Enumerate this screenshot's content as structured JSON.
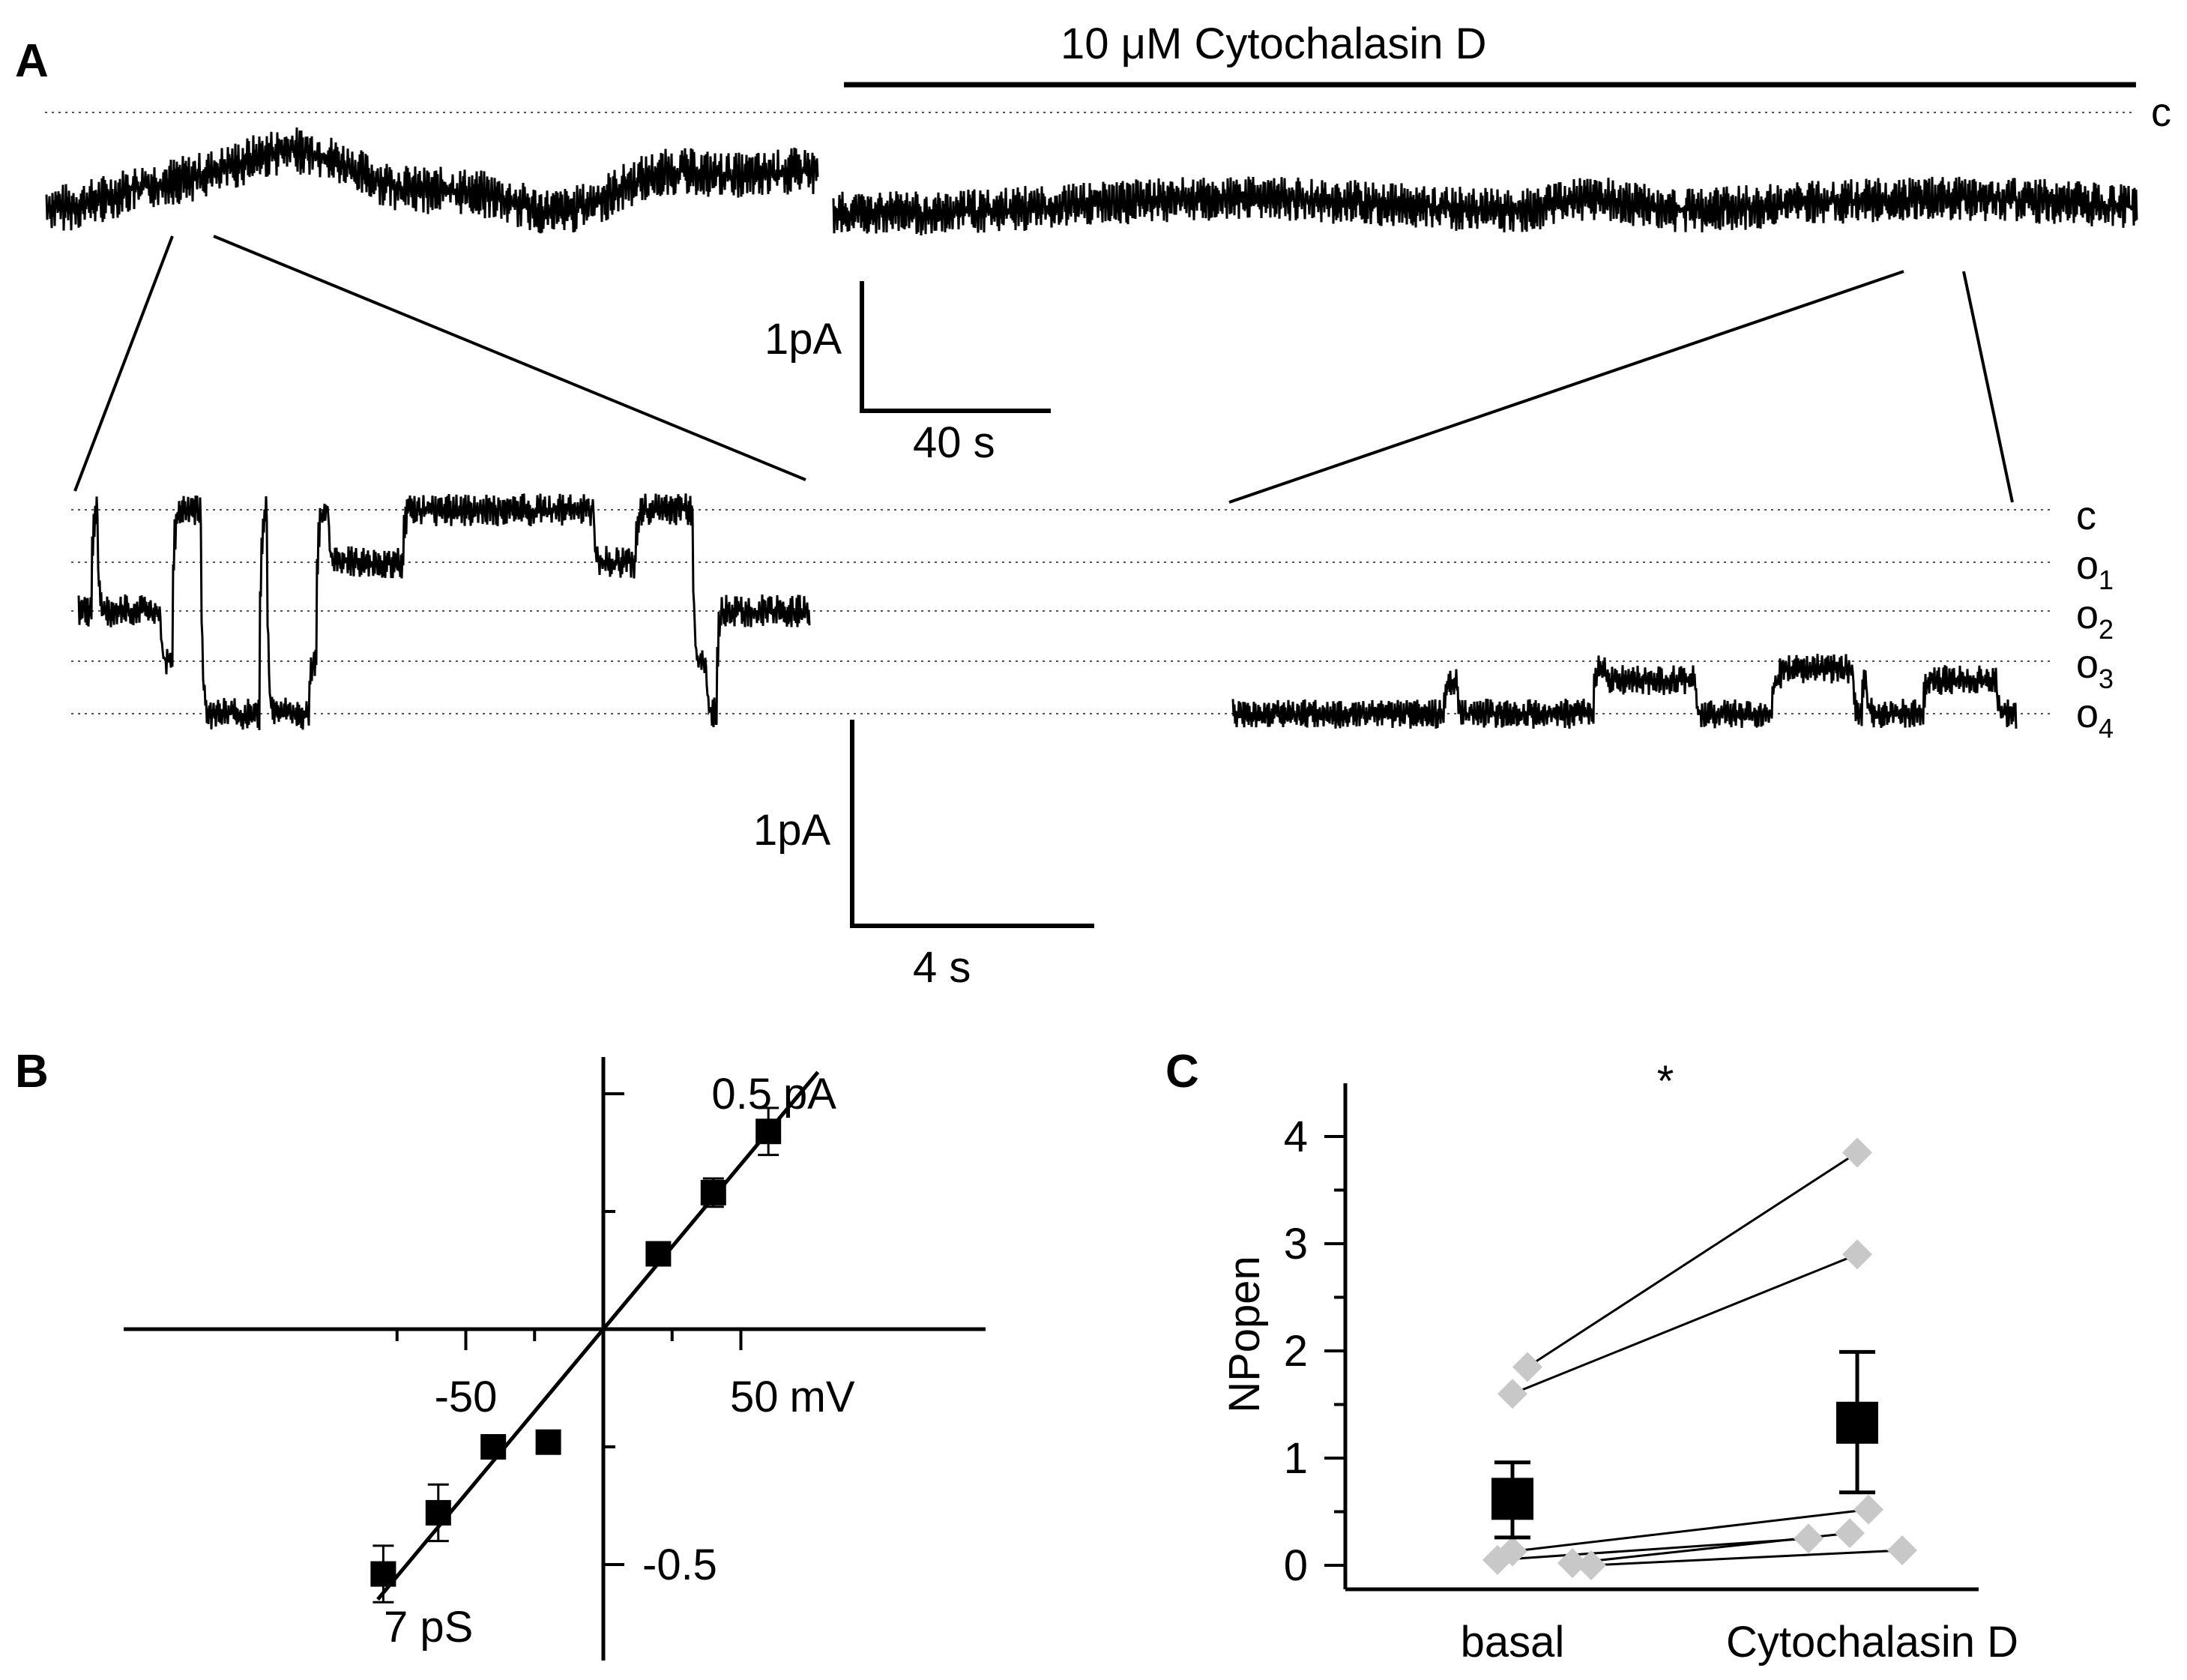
{
  "panels": {
    "A": {
      "label": "A",
      "treatment_label": "10 μM Cytochalasin D",
      "closed_level_label": "c",
      "upper_scale": {
        "current": "1pA",
        "time": "40 s"
      },
      "lower_scale": {
        "current": "1pA",
        "time": "4 s"
      },
      "level_labels": [
        {
          "base": "c",
          "sub": ""
        },
        {
          "base": "o",
          "sub": "1"
        },
        {
          "base": "o",
          "sub": "2"
        },
        {
          "base": "o",
          "sub": "3"
        },
        {
          "base": "o",
          "sub": "4"
        }
      ]
    },
    "B": {
      "label": "B"
    },
    "C": {
      "label": "C"
    }
  },
  "chart_data": [
    {
      "panel": "B",
      "type": "scatter",
      "fit": {
        "type": "linear",
        "slope_pA_per_mV": 0.007,
        "intercept": 0,
        "label": "7 pS",
        "x_range": [
          -82,
          56
        ]
      },
      "x": [
        -80,
        -60,
        -40,
        -20,
        20,
        40,
        60
      ],
      "y": [
        -0.52,
        -0.39,
        -0.25,
        -0.24,
        0.16,
        0.29,
        0.42
      ],
      "yerr": [
        0.06,
        0.06,
        0.02,
        0.0,
        0.01,
        0.03,
        0.05
      ],
      "xlim": [
        -90,
        70
      ],
      "ylim": [
        -0.7,
        0.52
      ],
      "x_ticks": [
        -50,
        50
      ],
      "y_ticks": [
        0.5,
        -0.5
      ],
      "tick_labels": {
        "x_neg": "-50",
        "x_pos": "50",
        "x_unit": "mV",
        "y_pos": "0.5",
        "y_unit": "pA",
        "y_neg": "-0.5"
      },
      "annotation": "7 pS"
    },
    {
      "panel": "C",
      "type": "scatter",
      "categories": [
        "basal",
        "Cytochalasin D"
      ],
      "ylabel": "NPopen",
      "ylim": [
        0,
        4.3
      ],
      "yticks": [
        0,
        1,
        2,
        3,
        4
      ],
      "significance": "*",
      "paired": [
        {
          "basal": 1.85,
          "cytochalasin": 3.85
        },
        {
          "basal": 1.6,
          "cytochalasin": 2.9
        },
        {
          "basal": 0.13,
          "cytochalasin": 0.52
        },
        {
          "basal": 0.02,
          "cytochalasin": 0.3
        },
        {
          "basal": 0.05,
          "cytochalasin": 0.25
        },
        {
          "basal": 0.0,
          "cytochalasin": 0.14
        }
      ],
      "mean": [
        {
          "category": "basal",
          "value": 0.62,
          "err_low": 0.36,
          "err_high": 0.34
        },
        {
          "category": "Cytochalasin D",
          "value": 1.33,
          "err_low": 0.65,
          "err_high": 0.66
        }
      ],
      "colors": {
        "individual": "#c8c8c8",
        "mean": "#000000",
        "line": "#000000"
      }
    }
  ]
}
